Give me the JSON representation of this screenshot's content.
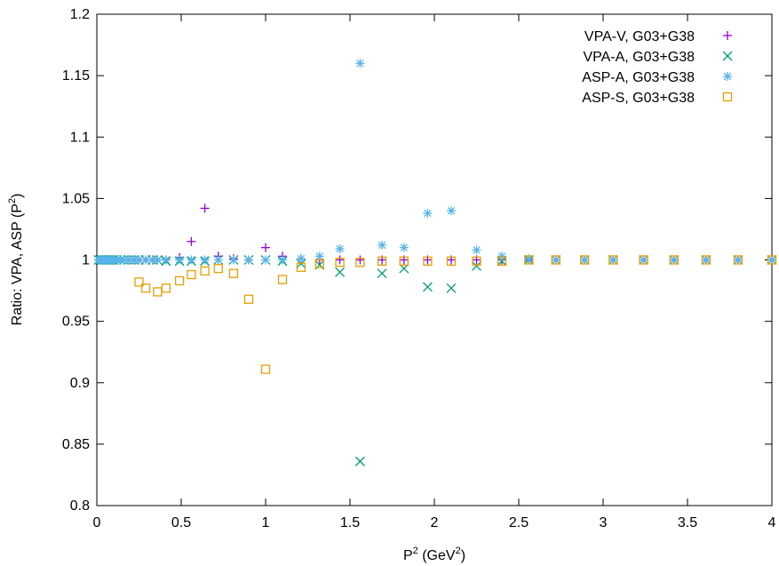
{
  "chart_data": {
    "type": "scatter",
    "xlabel": "P",
    "xlabel_sup": "2",
    "xlabel_unit_pre": " (GeV",
    "xlabel_unit_sup": "2",
    "xlabel_unit_post": ")",
    "ylabel": "Ratio: VPA, ASP (P",
    "ylabel_sup": "2",
    "ylabel_post": ")",
    "xlim": [
      0,
      4
    ],
    "ylim": [
      0.8,
      1.2
    ],
    "xticks": [
      "0",
      "0.5",
      "1",
      "1.5",
      "2",
      "2.5",
      "3",
      "3.5",
      "4"
    ],
    "yticks": [
      "0.8",
      "0.85",
      "0.9",
      "0.95",
      "1",
      "1.05",
      "1.1",
      "1.15",
      "1.2"
    ],
    "grid": false,
    "legend_position": "top-right",
    "series": [
      {
        "name": "VPA-V, G03+G38",
        "marker": "plus",
        "color": "#9400d3",
        "points": [
          [
            0.01,
            1.0
          ],
          [
            0.02,
            1.0
          ],
          [
            0.03,
            1.0
          ],
          [
            0.04,
            1.0
          ],
          [
            0.05,
            1.0
          ],
          [
            0.06,
            1.0
          ],
          [
            0.07,
            1.0
          ],
          [
            0.08,
            1.0
          ],
          [
            0.09,
            1.0
          ],
          [
            0.1,
            1.0
          ],
          [
            0.12,
            1.0
          ],
          [
            0.14,
            1.0
          ],
          [
            0.16,
            1.0
          ],
          [
            0.19,
            1.0
          ],
          [
            0.22,
            1.0
          ],
          [
            0.25,
            1.0
          ],
          [
            0.29,
            1.0
          ],
          [
            0.33,
            1.0
          ],
          [
            0.36,
            1.0
          ],
          [
            0.41,
            1.0
          ],
          [
            0.49,
            1.002
          ],
          [
            0.56,
            1.015
          ],
          [
            0.64,
            1.042
          ],
          [
            0.72,
            1.003
          ],
          [
            0.81,
            1.001
          ],
          [
            0.9,
            1.0
          ],
          [
            1.0,
            1.01
          ],
          [
            1.1,
            1.003
          ],
          [
            1.21,
            1.001
          ],
          [
            1.32,
            1.0
          ],
          [
            1.44,
            1.0
          ],
          [
            1.56,
            1.0
          ],
          [
            1.69,
            1.0
          ],
          [
            1.82,
            1.0
          ],
          [
            1.96,
            1.0
          ],
          [
            2.1,
            1.0
          ],
          [
            2.25,
            1.0
          ],
          [
            2.4,
            1.0
          ],
          [
            2.56,
            1.0
          ],
          [
            2.72,
            1.0
          ],
          [
            2.89,
            1.0
          ],
          [
            3.06,
            1.0
          ],
          [
            3.24,
            1.0
          ],
          [
            3.42,
            1.0
          ],
          [
            3.61,
            1.0
          ],
          [
            3.8,
            1.0
          ],
          [
            4.0,
            1.0
          ]
        ]
      },
      {
        "name": "VPA-A, G03+G38",
        "marker": "cross",
        "color": "#009e73",
        "points": [
          [
            0.01,
            1.0
          ],
          [
            0.02,
            1.0
          ],
          [
            0.03,
            1.0
          ],
          [
            0.04,
            1.0
          ],
          [
            0.05,
            1.0
          ],
          [
            0.06,
            1.0
          ],
          [
            0.07,
            1.0
          ],
          [
            0.08,
            1.0
          ],
          [
            0.09,
            1.0
          ],
          [
            0.1,
            1.0
          ],
          [
            0.12,
            1.0
          ],
          [
            0.14,
            1.0
          ],
          [
            0.16,
            1.0
          ],
          [
            0.19,
            1.0
          ],
          [
            0.22,
            1.0
          ],
          [
            0.25,
            1.0
          ],
          [
            0.29,
            1.0
          ],
          [
            0.33,
            1.0
          ],
          [
            0.36,
            1.0
          ],
          [
            0.41,
            0.999
          ],
          [
            0.49,
            0.999
          ],
          [
            0.56,
            0.999
          ],
          [
            0.64,
            0.999
          ],
          [
            0.72,
            1.0
          ],
          [
            0.81,
            1.0
          ],
          [
            0.9,
            1.0
          ],
          [
            1.0,
            1.0
          ],
          [
            1.1,
            0.999
          ],
          [
            1.21,
            0.997
          ],
          [
            1.32,
            0.996
          ],
          [
            1.44,
            0.99
          ],
          [
            1.56,
            0.836
          ],
          [
            1.69,
            0.989
          ],
          [
            1.82,
            0.993
          ],
          [
            1.96,
            0.978
          ],
          [
            2.1,
            0.977
          ],
          [
            2.25,
            0.995
          ],
          [
            2.4,
            0.999
          ],
          [
            2.56,
            1.0
          ],
          [
            2.72,
            1.0
          ],
          [
            2.89,
            1.0
          ],
          [
            3.06,
            1.0
          ],
          [
            3.24,
            1.0
          ],
          [
            3.42,
            1.0
          ],
          [
            3.61,
            1.0
          ],
          [
            3.8,
            1.0
          ],
          [
            4.0,
            1.0
          ]
        ]
      },
      {
        "name": "ASP-A, G03+G38",
        "marker": "star",
        "color": "#56b4e9",
        "points": [
          [
            0.01,
            1.0
          ],
          [
            0.02,
            1.0
          ],
          [
            0.03,
            1.0
          ],
          [
            0.04,
            1.0
          ],
          [
            0.05,
            1.0
          ],
          [
            0.06,
            1.0
          ],
          [
            0.07,
            1.0
          ],
          [
            0.08,
            1.0
          ],
          [
            0.09,
            1.0
          ],
          [
            0.1,
            1.0
          ],
          [
            0.12,
            1.0
          ],
          [
            0.14,
            1.0
          ],
          [
            0.16,
            1.0
          ],
          [
            0.19,
            1.0
          ],
          [
            0.22,
            1.0
          ],
          [
            0.25,
            1.0
          ],
          [
            0.29,
            1.0
          ],
          [
            0.33,
            1.0
          ],
          [
            0.36,
            1.0
          ],
          [
            0.41,
            1.0
          ],
          [
            0.49,
            1.0
          ],
          [
            0.56,
            1.0
          ],
          [
            0.64,
            1.0
          ],
          [
            0.72,
            1.0
          ],
          [
            0.81,
            1.0
          ],
          [
            0.9,
            1.0
          ],
          [
            1.0,
            1.0
          ],
          [
            1.1,
            1.0
          ],
          [
            1.21,
            1.001
          ],
          [
            1.32,
            1.003
          ],
          [
            1.44,
            1.009
          ],
          [
            1.56,
            1.16
          ],
          [
            1.69,
            1.012
          ],
          [
            1.82,
            1.01
          ],
          [
            1.96,
            1.038
          ],
          [
            2.1,
            1.04
          ],
          [
            2.25,
            1.008
          ],
          [
            2.4,
            1.003
          ],
          [
            2.56,
            1.001
          ],
          [
            2.72,
            1.0
          ],
          [
            2.89,
            1.0
          ],
          [
            3.06,
            1.0
          ],
          [
            3.24,
            1.0
          ],
          [
            3.42,
            1.0
          ],
          [
            3.61,
            1.0
          ],
          [
            3.8,
            1.0
          ],
          [
            4.0,
            1.0
          ]
        ]
      },
      {
        "name": "ASP-S, G03+G38",
        "marker": "square",
        "color": "#e69f00",
        "points": [
          [
            0.25,
            0.982
          ],
          [
            0.29,
            0.977
          ],
          [
            0.36,
            0.974
          ],
          [
            0.41,
            0.977
          ],
          [
            0.49,
            0.983
          ],
          [
            0.56,
            0.988
          ],
          [
            0.64,
            0.991
          ],
          [
            0.72,
            0.993
          ],
          [
            0.81,
            0.989
          ],
          [
            0.9,
            0.968
          ],
          [
            1.0,
            0.911
          ],
          [
            1.1,
            0.984
          ],
          [
            1.21,
            0.994
          ],
          [
            1.32,
            0.997
          ],
          [
            1.44,
            0.998
          ],
          [
            1.56,
            0.998
          ],
          [
            1.69,
            0.999
          ],
          [
            1.82,
            0.999
          ],
          [
            1.96,
            0.999
          ],
          [
            2.1,
            0.999
          ],
          [
            2.25,
            0.999
          ],
          [
            2.4,
            0.999
          ],
          [
            2.56,
            1.0
          ],
          [
            2.72,
            1.0
          ],
          [
            2.89,
            1.0
          ],
          [
            3.06,
            1.0
          ],
          [
            3.24,
            1.0
          ],
          [
            3.42,
            1.0
          ],
          [
            3.61,
            1.0
          ],
          [
            3.8,
            1.0
          ],
          [
            4.0,
            1.0
          ]
        ]
      }
    ]
  }
}
